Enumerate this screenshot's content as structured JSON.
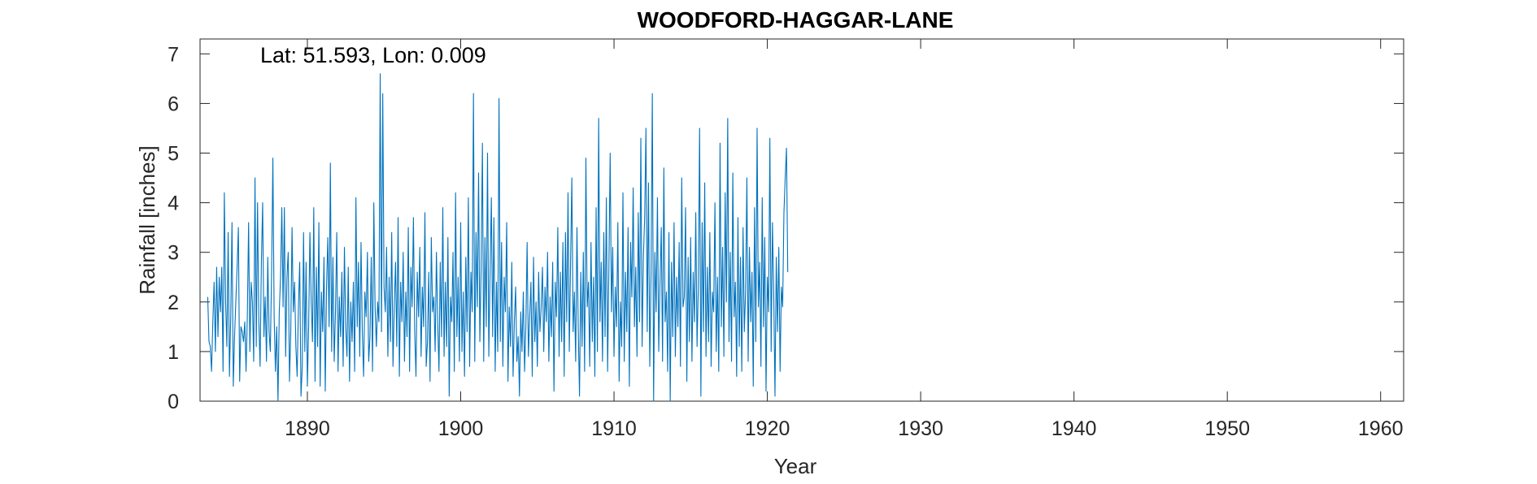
{
  "chart_data": {
    "type": "line",
    "title": "WOODFORD-HAGGAR-LANE",
    "annotation": "Lat: 51.593, Lon: 0.009",
    "xlabel": "Year",
    "ylabel": "Rainfall [inches]",
    "xlim": [
      1883,
      1961.5
    ],
    "ylim": [
      0,
      7.3
    ],
    "x_ticks": [
      1890,
      1900,
      1910,
      1920,
      1930,
      1940,
      1950,
      1960
    ],
    "y_ticks": [
      0,
      1,
      2,
      3,
      4,
      5,
      6,
      7
    ],
    "x_tick_labels": [
      "1890",
      "1900",
      "1910",
      "1920",
      "1930",
      "1940",
      "1950",
      "1960"
    ],
    "y_tick_labels": [
      "0",
      "1",
      "2",
      "3",
      "4",
      "5",
      "6",
      "7"
    ],
    "grid": false,
    "series": [
      {
        "color": "#0072BD",
        "start_year": 1883.5,
        "step_years": 0.08333,
        "values": [
          2.1,
          1.2,
          1.1,
          0.6,
          1.6,
          2.4,
          1.0,
          2.7,
          1.3,
          2.5,
          1.8,
          2.7,
          0.6,
          4.2,
          2.0,
          1.1,
          3.4,
          0.5,
          1.7,
          3.6,
          0.3,
          1.3,
          2.0,
          2.7,
          3.5,
          0.4,
          1.5,
          1.4,
          1.2,
          1.6,
          0.6,
          1.7,
          3.6,
          1.0,
          2.4,
          2.0,
          0.8,
          4.5,
          1.1,
          4.0,
          1.6,
          0.7,
          2.8,
          4.0,
          1.3,
          2.1,
          0.8,
          2.9,
          1.4,
          1.0,
          2.6,
          4.9,
          1.7,
          0.6,
          1.5,
          0.0,
          1.8,
          2.5,
          3.9,
          1.9,
          3.9,
          0.9,
          2.5,
          3.0,
          0.4,
          1.4,
          3.5,
          1.8,
          2.4,
          1.1,
          0.5,
          1.9,
          2.8,
          0.1,
          0.7,
          3.4,
          1.0,
          2.8,
          0.3,
          1.5,
          3.4,
          2.0,
          1.2,
          3.9,
          0.4,
          2.7,
          1.1,
          3.6,
          0.3,
          2.2,
          1.4,
          2.9,
          0.2,
          2.3,
          3.3,
          1.5,
          4.8,
          1.0,
          2.9,
          0.8,
          1.8,
          3.4,
          0.6,
          2.1,
          1.3,
          2.6,
          0.7,
          3.1,
          1.5,
          0.9,
          2.7,
          0.4,
          2.0,
          1.2,
          2.4,
          0.6,
          4.1,
          1.5,
          2.8,
          0.9,
          3.2,
          1.4,
          0.5,
          2.2,
          1.7,
          3.0,
          0.8,
          1.3,
          2.9,
          0.6,
          4.0,
          1.9,
          1.1,
          2.0,
          1.6,
          6.6,
          1.4,
          6.2,
          2.3,
          1.8,
          3.1,
          0.9,
          2.5,
          1.2,
          3.4,
          0.7,
          1.9,
          2.8,
          1.1,
          3.7,
          0.5,
          2.4,
          1.6,
          3.0,
          0.8,
          2.2,
          1.3,
          3.5,
          0.6,
          2.7,
          1.9,
          3.7,
          1.4,
          0.5,
          2.6,
          1.7,
          3.1,
          0.9,
          2.3,
          1.5,
          3.8,
          0.7,
          1.2,
          2.6,
          0.4,
          3.3,
          1.8,
          2.1,
          1.0,
          3.0,
          1.6,
          0.6,
          2.8,
          1.3,
          3.9,
          0.9,
          2.4,
          1.1,
          3.3,
          0.1,
          2.1,
          1.6,
          3.0,
          0.6,
          4.2,
          1.3,
          2.5,
          0.8,
          3.6,
          1.0,
          2.2,
          0.5,
          2.9,
          1.4,
          4.1,
          0.7,
          2.6,
          1.8,
          6.2,
          0.8,
          3.4,
          1.9,
          4.6,
          1.2,
          2.7,
          5.2,
          0.8,
          3.3,
          1.5,
          5.0,
          0.9,
          2.6,
          4.1,
          1.3,
          3.7,
          0.6,
          2.4,
          1.0,
          6.1,
          1.2,
          3.2,
          0.7,
          2.5,
          1.8,
          3.6,
          0.4,
          1.9,
          1.1,
          2.8,
          0.5,
          1.6,
          2.3,
          0.8,
          1.3,
          0.1,
          1.8,
          1.0,
          2.2,
          0.6,
          1.5,
          3.2,
          0.9,
          1.7,
          2.4,
          0.5,
          2.9,
          1.2,
          2.0,
          0.7,
          2.6,
          1.4,
          1.9,
          2.7,
          1.0,
          2.3,
          1.6,
          3.0,
          0.8,
          2.1,
          1.3,
          2.8,
          0.2,
          2.4,
          1.7,
          3.5,
          0.9,
          2.6,
          1.2,
          3.2,
          0.5,
          3.4,
          1.6,
          4.2,
          1.0,
          2.8,
          4.5,
          1.4,
          2.2,
          0.8,
          3.5,
          1.5,
          0.1,
          2.6,
          1.1,
          3.0,
          0.6,
          4.9,
          1.9,
          2.4,
          0.7,
          3.2,
          1.2,
          2.5,
          0.5,
          3.9,
          1.0,
          5.7,
          1.6,
          2.8,
          0.8,
          3.4,
          1.3,
          4.1,
          0.6,
          2.7,
          5.0,
          1.8,
          3.1,
          0.9,
          2.3,
          1.5,
          3.6,
          0.4,
          2.0,
          1.1,
          4.2,
          0.8,
          2.6,
          1.4,
          3.5,
          0.3,
          3.2,
          2.1,
          4.3,
          1.5,
          2.7,
          0.9,
          3.8,
          1.6,
          5.3,
          1.1,
          2.9,
          3.7,
          5.5,
          1.4,
          4.4,
          0.7,
          2.6,
          6.2,
          0.0,
          3.0,
          1.8,
          4.1,
          1.0,
          2.4,
          3.5,
          0.8,
          4.7,
          1.6,
          2.2,
          0.6,
          3.4,
          0.0,
          2.8,
          1.3,
          3.6,
          0.9,
          2.5,
          1.5,
          3.2,
          0.7,
          4.5,
          1.9,
          2.1,
          3.9,
          0.4,
          2.9,
          1.2,
          3.3,
          0.8,
          2.6,
          1.6,
          3.8,
          1.1,
          2.3,
          5.5,
          0.1,
          3.6,
          1.4,
          4.4,
          0.9,
          2.7,
          1.2,
          3.4,
          0.7,
          2.2,
          1.8,
          4.0,
          1.0,
          2.5,
          0.6,
          5.2,
          1.5,
          3.1,
          0.9,
          4.2,
          2.0,
          5.7,
          1.2,
          3.0,
          0.8,
          4.6,
          1.7,
          2.4,
          0.5,
          3.7,
          1.1,
          2.9,
          0.6,
          3.5,
          1.4,
          2.2,
          4.5,
          0.8,
          3.1,
          1.6,
          2.6,
          0.3,
          3.9,
          1.2,
          5.5,
          1.9,
          2.8,
          0.7,
          4.1,
          1.5,
          3.3,
          0.2,
          2.5,
          1.8,
          5.3,
          1.0,
          3.6,
          2.2,
          0.1,
          2.9,
          1.4,
          3.1,
          0.6,
          2.3,
          1.9,
          3.8,
          4.5,
          5.1,
          2.6
        ]
      }
    ]
  }
}
